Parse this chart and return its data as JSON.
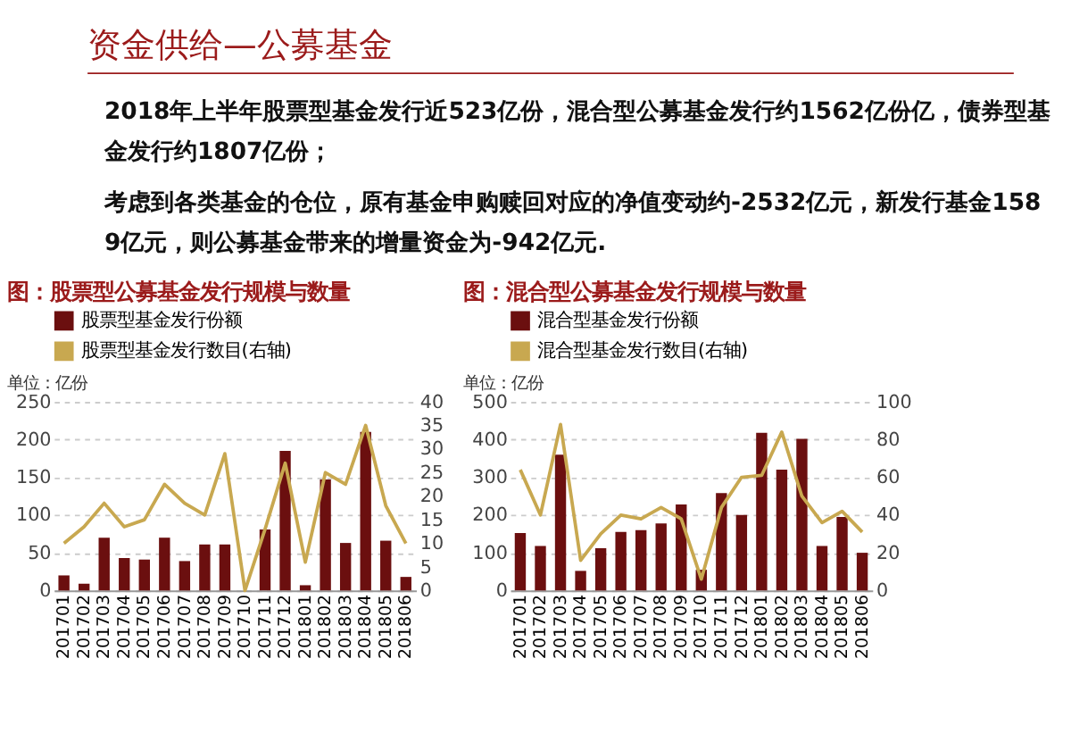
{
  "chart_data": [
    {
      "type": "other",
      "title": "资金供给—公募基金",
      "annotations": [
        "2018年上半年股票型基金发行近523亿份，混合型公募基金发行约1562亿份亿，债券型基金发行约1807亿份；",
        "考虑到各类基金的仓位，原有基金申购赎回对应的净值变动约-2532亿元，新发行基金1589亿元，则公募基金带来的增量资金为-942亿元."
      ]
    },
    {
      "type": "bar",
      "title": "图：股票型公募基金发行规模与数量",
      "annotations": [
        "单位：亿份"
      ],
      "legend": "top",
      "grid": "y",
      "categories": [
        "201701",
        "201702",
        "201703",
        "201704",
        "201705",
        "201706",
        "201707",
        "201708",
        "201709",
        "201710",
        "201711",
        "201712",
        "201801",
        "201802",
        "201803",
        "201804",
        "201805",
        "201806"
      ],
      "ylim": [
        0,
        250
      ],
      "yticks": [
        0,
        50,
        100,
        150,
        200,
        250
      ],
      "y2lim": [
        0,
        40
      ],
      "y2ticks": [
        0,
        5,
        10,
        15,
        20,
        25,
        30,
        35,
        40
      ],
      "series": [
        {
          "name": "股票型基金发行份额",
          "type": "bar",
          "color": "#6b0f0f",
          "values": [
            20,
            9,
            70,
            43,
            41,
            70,
            39,
            61,
            61,
            0,
            81,
            185,
            7,
            147,
            63,
            210,
            66,
            18
          ]
        },
        {
          "name": "股票型基金发行数目(右轴)",
          "type": "line",
          "axis": "y2",
          "color": "#c8a850",
          "values": [
            10,
            13.5,
            18.5,
            13.5,
            15,
            22.5,
            18.5,
            16,
            29,
            0,
            13,
            27,
            6,
            25,
            22.5,
            35,
            18,
            10
          ]
        }
      ]
    },
    {
      "type": "bar",
      "title": "图：混合型公募基金发行规模与数量",
      "annotations": [
        "单位：亿份"
      ],
      "legend": "top",
      "grid": "y",
      "categories": [
        "201701",
        "201702",
        "201703",
        "201704",
        "201705",
        "201706",
        "201707",
        "201708",
        "201709",
        "201710",
        "201711",
        "201712",
        "201801",
        "201802",
        "201803",
        "201804",
        "201805",
        "201806"
      ],
      "ylim": [
        0,
        500
      ],
      "yticks": [
        0,
        100,
        200,
        300,
        400,
        500
      ],
      "y2lim": [
        0,
        100
      ],
      "y2ticks": [
        0,
        20,
        40,
        60,
        80,
        100
      ],
      "series": [
        {
          "name": "混合型基金发行份额",
          "type": "bar",
          "color": "#6b0f0f",
          "values": [
            152,
            118,
            360,
            52,
            112,
            155,
            160,
            178,
            228,
            55,
            258,
            200,
            418,
            320,
            402,
            118,
            195,
            100
          ]
        },
        {
          "name": "混合型基金发行数目(右轴)",
          "type": "line",
          "axis": "y2",
          "color": "#c8a850",
          "values": [
            64,
            40,
            88,
            16,
            30,
            40,
            38,
            44,
            38,
            6,
            44,
            60,
            61,
            84,
            50,
            36,
            42,
            31
          ]
        }
      ]
    }
  ]
}
